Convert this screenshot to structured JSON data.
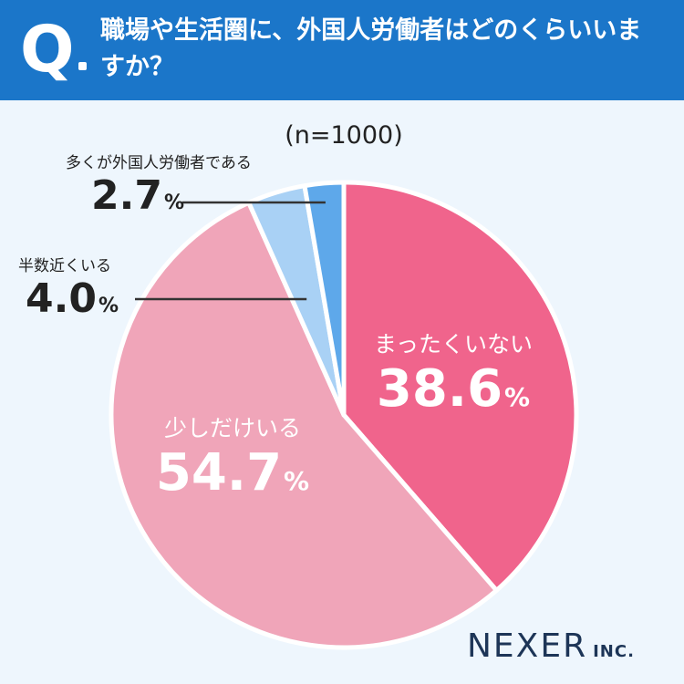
{
  "header": {
    "q_mark": "Q",
    "question": "職場や生活圏に、外国人労働者はどのくらいいますか？"
  },
  "sample_size": "(n=1000)",
  "chart_data": {
    "type": "pie",
    "title": "職場や生活圏に、外国人労働者はどのくらいいますか？",
    "n": 1000,
    "unit": "%",
    "slices": [
      {
        "label": "まったくいない",
        "value": 38.6,
        "value_text": "38.6",
        "color": "#f0648c"
      },
      {
        "label": "少しだけいる",
        "value": 54.7,
        "value_text": "54.7",
        "color": "#f0a5b9"
      },
      {
        "label": "半数近くいる",
        "value": 4.0,
        "value_text": "4.0",
        "color": "#a9d1f5"
      },
      {
        "label": "多くが外国人労働者である",
        "value": 2.7,
        "value_text": "2.7",
        "color": "#5ea8ea"
      }
    ],
    "start_angle": "top",
    "direction": "clockwise"
  },
  "percent_sign": "%",
  "brand": {
    "name": "NEXER",
    "suffix": "INC."
  },
  "colors": {
    "header_bg": "#1b76c9",
    "page_bg": "#eef6fd",
    "brand_text": "#1d3557"
  }
}
